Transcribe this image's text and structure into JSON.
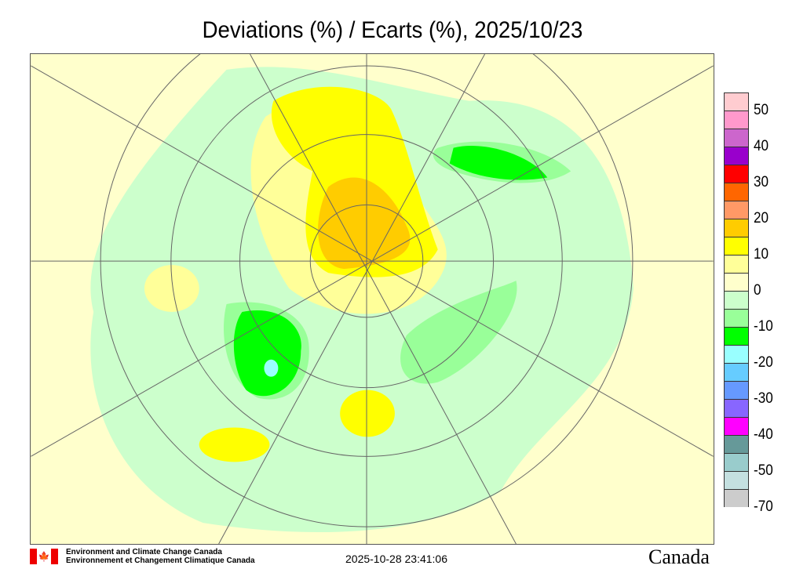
{
  "title": "Deviations (%) / Ecarts (%), 2025/10/23",
  "legend": {
    "colors": [
      "#ffccd0",
      "#ff99cc",
      "#cc66cc",
      "#9900cc",
      "#ff0000",
      "#ff6600",
      "#ff9966",
      "#ffcc00",
      "#ffff00",
      "#ffff99",
      "#ffffcc",
      "#ccffcc",
      "#99ff99",
      "#00ff00",
      "#99ffff",
      "#66ccff",
      "#6699ff",
      "#8866ff",
      "#ff00ff",
      "#669999",
      "#99cccc",
      "#c4e0e0",
      "#cccccc"
    ],
    "labels": [
      "50",
      "40",
      "30",
      "20",
      "10",
      "0",
      "-10",
      "-20",
      "-30",
      "-40",
      "-50",
      "-70"
    ]
  },
  "footer": {
    "org_en": "Environment and Climate Change Canada",
    "org_fr": "Environnement et Changement Climatique Canada",
    "timestamp": "2025-10-28 23:41:06",
    "wordmark": "Canada"
  }
}
